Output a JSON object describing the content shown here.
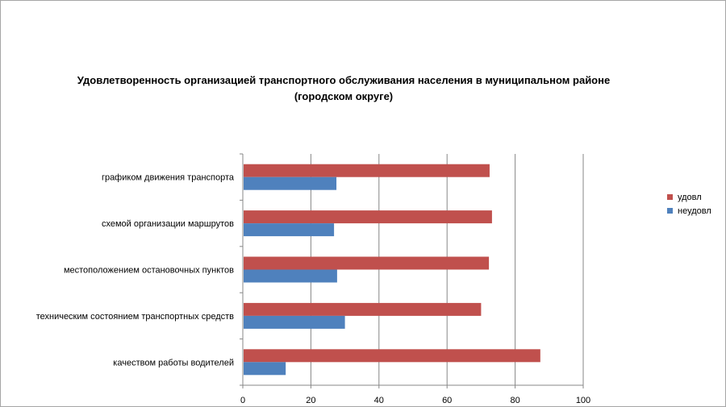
{
  "chart_data": {
    "type": "bar",
    "orientation": "horizontal",
    "title_line1": "Удовлетворенность организацией транспортного обслуживания населения в муниципальном районе",
    "title_line2": "(городском округе)",
    "categories": [
      "графиком движения транспорта",
      "схемой организации маршрутов",
      "местоположением остановочных пунктов",
      "техническим состоянием транспортных средств",
      "качеством работы водителей"
    ],
    "series": [
      {
        "name": "удовл",
        "color": "#c0504d",
        "values": [
          72.5,
          73.2,
          72.3,
          70.0,
          87.4
        ]
      },
      {
        "name": "неудовл",
        "color": "#4f81bd",
        "values": [
          27.5,
          26.8,
          27.7,
          30.0,
          12.6
        ]
      }
    ],
    "xlim": [
      0,
      100
    ],
    "x_ticks": [
      "0",
      "20",
      "40",
      "60",
      "80",
      "100"
    ],
    "grid": true,
    "legend_position": "right"
  }
}
